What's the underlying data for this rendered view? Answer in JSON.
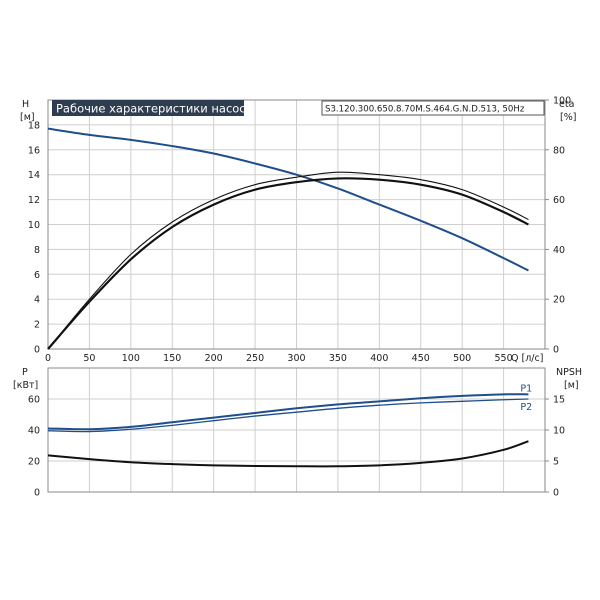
{
  "chart_data": [
    {
      "type": "line",
      "title": "Рабочие характеристики насоса",
      "model": "S3.120.300.650.8.70M.S.464.G.N.D.513, 50Hz",
      "xlabel": "Q [л/с]",
      "ylabel_left": {
        "name": "H",
        "unit": "[м]"
      },
      "ylabel_right": {
        "name": "eta",
        "unit": "[%]"
      },
      "xlim": [
        0,
        600
      ],
      "ylim_left": [
        0,
        20
      ],
      "ylim_right": [
        0,
        100
      ],
      "x_ticks": [
        "0",
        "50",
        "100",
        "150",
        "200",
        "250",
        "300",
        "350",
        "400",
        "450",
        "500",
        "550"
      ],
      "y_ticks_left": [
        "0",
        "2",
        "4",
        "6",
        "8",
        "10",
        "12",
        "14",
        "16",
        "18"
      ],
      "y_ticks_right": [
        "0",
        "20",
        "40",
        "60",
        "80",
        "100"
      ],
      "grid": true,
      "colors": {
        "head": "#1f4e8c",
        "efficiency": "#111111"
      },
      "series": [
        {
          "axis": "left",
          "x": [
            0,
            50,
            100,
            150,
            200,
            250,
            300,
            350,
            400,
            450,
            500,
            550,
            580
          ],
          "values": [
            17.7,
            17.2,
            16.8,
            16.3,
            15.7,
            14.9,
            14.0,
            12.9,
            11.6,
            10.3,
            8.9,
            7.3,
            6.3
          ]
        },
        {
          "axis": "right",
          "x": [
            0,
            50,
            100,
            150,
            200,
            250,
            300,
            350,
            400,
            450,
            500,
            550,
            580
          ],
          "values": [
            0,
            20,
            38,
            51,
            60,
            66,
            69,
            71,
            70,
            68,
            64,
            57,
            52
          ]
        },
        {
          "axis": "right",
          "x": [
            0,
            50,
            100,
            150,
            200,
            250,
            300,
            350,
            400,
            450,
            500,
            550,
            580
          ],
          "values": [
            0,
            19,
            36,
            49,
            58,
            64,
            67,
            68.5,
            68,
            66,
            62,
            55,
            50
          ]
        }
      ]
    },
    {
      "type": "line",
      "xlabel": "",
      "ylabel_left": {
        "name": "P",
        "unit": "[кВт]"
      },
      "ylabel_right": {
        "name": "NPSH",
        "unit": "[м]"
      },
      "xlim": [
        0,
        600
      ],
      "ylim_left": [
        0,
        80
      ],
      "ylim_right": [
        0,
        20
      ],
      "y_ticks_left": [
        "0",
        "20",
        "40",
        "60"
      ],
      "y_ticks_right": [
        "0",
        "5",
        "10",
        "15"
      ],
      "grid": true,
      "colors": {
        "power": "#1f4e8c",
        "npsh": "#111111"
      },
      "series": [
        {
          "name": "P1",
          "axis": "left",
          "x": [
            0,
            50,
            100,
            150,
            200,
            250,
            300,
            350,
            400,
            450,
            500,
            550,
            580
          ],
          "values": [
            41,
            40.5,
            42,
            45,
            48,
            51,
            54,
            56.5,
            58.5,
            60.5,
            62,
            63,
            63
          ]
        },
        {
          "name": "P2",
          "axis": "left",
          "x": [
            0,
            50,
            100,
            150,
            200,
            250,
            300,
            350,
            400,
            450,
            500,
            550,
            580
          ],
          "values": [
            39.5,
            39,
            40.5,
            43,
            46,
            49,
            51.5,
            54,
            56,
            57.5,
            58.5,
            59.5,
            60
          ]
        },
        {
          "axis": "right",
          "x": [
            0,
            50,
            100,
            150,
            200,
            250,
            300,
            350,
            400,
            450,
            500,
            550,
            580
          ],
          "values": [
            5.9,
            5.3,
            4.8,
            4.5,
            4.3,
            4.2,
            4.15,
            4.15,
            4.3,
            4.7,
            5.4,
            6.8,
            8.2
          ]
        }
      ]
    }
  ]
}
